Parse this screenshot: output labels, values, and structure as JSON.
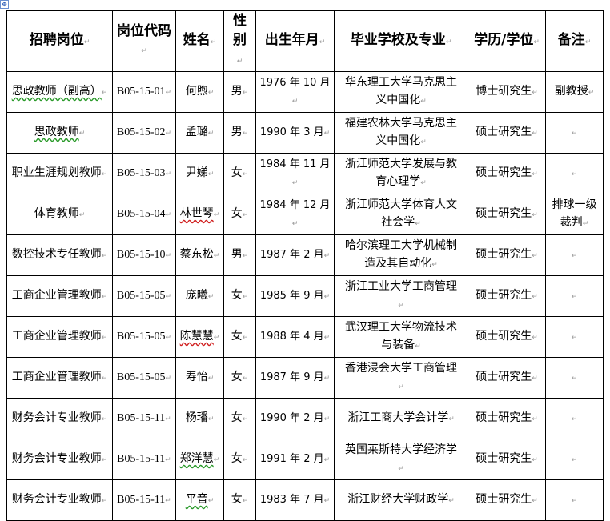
{
  "headers": [
    "招聘岗位",
    "岗位代码",
    "姓名",
    "性别",
    "出生年月",
    "毕业学校及专业",
    "学历/学位",
    "备注"
  ],
  "rows": [
    {
      "position": "思政教师（副高）",
      "code": "B05-15-01",
      "name": "何煦",
      "gender": "男",
      "birth": "1976 年 10 月",
      "school": "华东理工大学马克思主义中国化",
      "degree": "博士研究生",
      "note": "副教授"
    },
    {
      "position": "思政教师",
      "code": "B05-15-02",
      "name": "孟璐",
      "gender": "男",
      "birth": "1990 年 3 月",
      "school": "福建农林大学马克思主义中国化",
      "degree": "硕士研究生",
      "note": ""
    },
    {
      "position": "职业生涯规划教师",
      "code": "B05-15-03",
      "name": "尹娣",
      "gender": "女",
      "birth": "1984 年 11 月",
      "school": "浙江师范大学发展与教育心理学",
      "degree": "硕士研究生",
      "note": ""
    },
    {
      "position": "体育教师",
      "code": "B05-15-04",
      "name": "林世琴",
      "gender": "女",
      "birth": "1984 年 12 月",
      "school": "浙江师范大学体育人文社会学",
      "degree": "硕士研究生",
      "note": "排球一级裁判"
    },
    {
      "position": "数控技术专任教师",
      "code": "B05-15-10",
      "name": "蔡东松",
      "gender": "男",
      "birth": "1987 年 2 月",
      "school": "哈尔滨理工大学机械制造及其自动化",
      "degree": "硕士研究生",
      "note": ""
    },
    {
      "position": "工商企业管理教师",
      "code": "B05-15-05",
      "name": "庞曦",
      "gender": "女",
      "birth": "1985 年 9 月",
      "school": "浙江工业大学工商管理",
      "degree": "硕士研究生",
      "note": ""
    },
    {
      "position": "工商企业管理教师",
      "code": "B05-15-05",
      "name": "陈慧慧",
      "gender": "女",
      "birth": "1988 年 4 月",
      "school": "武汉理工大学物流技术与装备",
      "degree": "硕士研究生",
      "note": ""
    },
    {
      "position": "工商企业管理教师",
      "code": "B05-15-05",
      "name": "寿怡",
      "gender": "女",
      "birth": "1987 年 9 月",
      "school": "香港浸会大学工商管理",
      "degree": "硕士研究生",
      "note": ""
    },
    {
      "position": "财务会计专业教师",
      "code": "B05-15-11",
      "name": "杨璠",
      "gender": "女",
      "birth": "1990 年 2 月",
      "school": "浙江工商大学会计学",
      "degree": "硕士研究生",
      "note": ""
    },
    {
      "position": "财务会计专业教师",
      "code": "B05-15-11",
      "name": "郑洋慧",
      "gender": "女",
      "birth": "1991 年 2 月",
      "school": "英国莱斯特大学经济学",
      "degree": "硕士研究生",
      "note": ""
    },
    {
      "position": "财务会计专业教师",
      "code": "B05-15-11",
      "name": "平音",
      "gender": "女",
      "birth": "1983 年 7 月",
      "school": "浙江财经大学财政学",
      "degree": "硕士研究生",
      "note": ""
    }
  ]
}
